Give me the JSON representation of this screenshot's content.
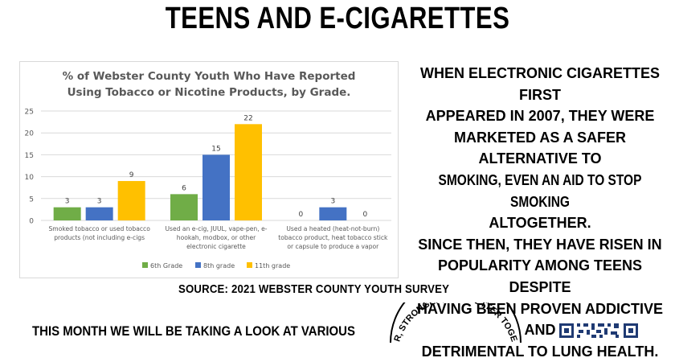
{
  "headline": "TEENS AND E-CIGARETTES",
  "source": "SOURCE: 2021 WEBSTER COUNTY YOUTH SURVEY",
  "side_text": {
    "lines": [
      "WHEN ELECTRONIC CIGARETTES FIRST",
      "APPEARED IN 2007, THEY WERE",
      "MARKETED AS A SAFER ALTERNATIVE TO",
      "SMOKING, EVEN AN AID TO STOP SMOKING",
      "ALTOGETHER.",
      "SINCE THEN, THEY HAVE RISEN IN",
      "POPULARITY AMONG TEENS DESPITE",
      "HAVING BEEN PROVEN ADDICTIVE AND",
      "DETRIMENTAL TO LUNG HEALTH."
    ]
  },
  "bottom_text": "THIS MONTH WE WILL BE TAKING A LOOK AT VARIOUS",
  "seal_text": "R, STRONGER, AND BETTER TOGE",
  "colors": {
    "grade6": "#70ad47",
    "grade8": "#4472c4",
    "grade11": "#ffc000",
    "grid": "#d9d9d9",
    "axis_text": "#595959"
  },
  "chart_data": {
    "type": "bar",
    "title": "% of Webster County Youth Who Have Reported Using Tobacco or Nicotine Products, by Grade.",
    "title_lines": [
      "% of Webster County Youth Who Have Reported",
      "Using Tobacco or Nicotine Products, by Grade."
    ],
    "categories": [
      [
        "Smoked tobacco or used tobacco",
        "products (not including e-cigs"
      ],
      [
        "Used an e-cig, JUUL, vape-pen, e-",
        "hookah, modbox, or other",
        "electronic cigarette"
      ],
      [
        "Used a heated (heat-not-burn)",
        "tobacco product, heat tobacco stick",
        "or capsule to produce a vapor"
      ]
    ],
    "series": [
      {
        "name": "6th Grade",
        "values": [
          3,
          6,
          0
        ]
      },
      {
        "name": "8th grade",
        "values": [
          3,
          15,
          3
        ]
      },
      {
        "name": "11th grade",
        "values": [
          9,
          22,
          0
        ]
      }
    ],
    "ylim": [
      0,
      25
    ],
    "yticks": [
      0,
      5,
      10,
      15,
      20,
      25
    ],
    "grid": true,
    "legend": "bottom"
  }
}
